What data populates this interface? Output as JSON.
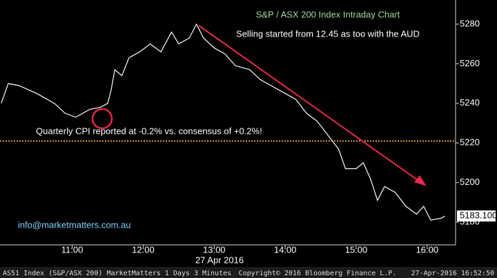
{
  "chart_data": {
    "type": "line",
    "title": "S&P / ASX 200 Index Intraday Chart",
    "annotations": {
      "selling": "Selling started from 12.45 as too with the AUD",
      "cpi": "Quarterly CPI reported at -0.2% vs. consensus of +0.2%!",
      "email": "info@marketmatters.com.au"
    },
    "x_axis_label": "27 Apr 2016",
    "footer": {
      "left": "AS51 Index (S&P/ASX 200) MarketMatters 1 Days 3 Minutes",
      "center": "Copyright© 2016 Bloomberg Finance L.P.",
      "right": "27-Apr-2016 16:52:50"
    },
    "x": [
      "10:00",
      "10:06",
      "10:15",
      "10:30",
      "10:45",
      "10:54",
      "11:03",
      "11:15",
      "11:24",
      "11:30",
      "11:33",
      "11:36",
      "11:42",
      "11:48",
      "11:57",
      "12:06",
      "12:15",
      "12:24",
      "12:30",
      "12:39",
      "12:45",
      "12:51",
      "13:00",
      "13:09",
      "13:18",
      "13:30",
      "13:39",
      "13:48",
      "14:00",
      "14:09",
      "14:18",
      "14:27",
      "14:36",
      "14:45",
      "14:51",
      "15:00",
      "15:06",
      "15:12",
      "15:18",
      "15:24",
      "15:33",
      "15:42",
      "15:51",
      "15:57",
      "16:03",
      "16:12",
      "16:15"
    ],
    "series": [
      {
        "name": "AS51 Index",
        "color": "#ffffff",
        "values": [
          5240,
          5250,
          5249,
          5245,
          5240,
          5235,
          5233,
          5237,
          5238,
          5240,
          5247,
          5257,
          5254,
          5263,
          5266,
          5270,
          5266,
          5276,
          5270,
          5273,
          5280,
          5273,
          5268,
          5265,
          5259,
          5257,
          5252,
          5249,
          5245,
          5242,
          5235,
          5231,
          5224,
          5217,
          5207,
          5207,
          5210,
          5202,
          5191,
          5198,
          5195,
          5188,
          5184,
          5188,
          5181,
          5182,
          5183.1
        ]
      }
    ],
    "last_label": {
      "value": 5183.1,
      "label": "5183.100"
    },
    "hline": {
      "value": 5221,
      "color": "#f0a020"
    },
    "xlim": [
      "09:59",
      "16:24"
    ],
    "xticks": [
      "11:00",
      "12:00",
      "13:00",
      "14:00",
      "15:00",
      "16:00"
    ],
    "ylim": [
      5168.5,
      5292.2
    ],
    "yticks": [
      5180,
      5200,
      5220,
      5240,
      5260,
      5280
    ],
    "grid": false
  }
}
